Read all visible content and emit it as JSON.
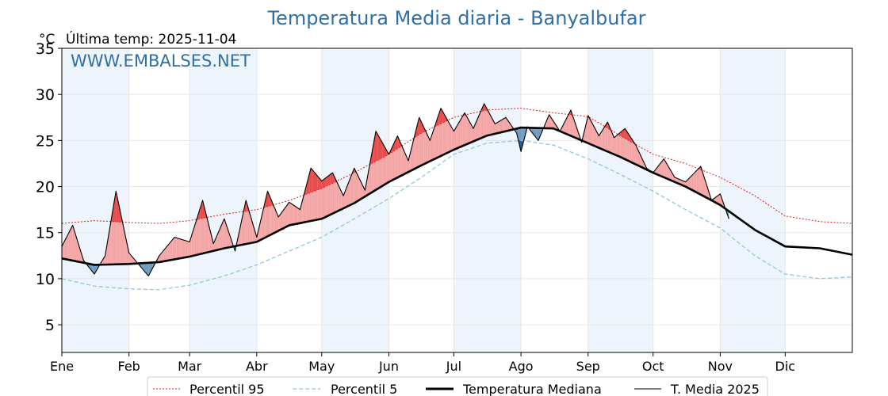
{
  "chart_data": {
    "type": "line",
    "title": "Temperatura Media diaria - Banyalbufar",
    "unit": "°C",
    "last_temp_label": "Última temp: 2025-11-04",
    "watermark": "WWW.EMBALSES.NET",
    "ylim": [
      2,
      35
    ],
    "yticks": [
      5,
      10,
      15,
      20,
      25,
      30,
      35
    ],
    "xlim": [
      0,
      365
    ],
    "month_labels": [
      "Ene",
      "Feb",
      "Mar",
      "Abr",
      "May",
      "Jun",
      "Jul",
      "Ago",
      "Sep",
      "Oct",
      "Nov",
      "Dic"
    ],
    "month_starts": [
      0,
      31,
      59,
      90,
      120,
      151,
      181,
      212,
      243,
      273,
      304,
      334
    ],
    "grid": true,
    "legend_position": "bottom",
    "colors": {
      "title": "#2e6fa6",
      "p95": "#e31a1c",
      "p5": "#8ec7da",
      "median": "#000000",
      "current": "#000000",
      "above_fill": "#f4a6a6",
      "above_strong": "#e84c4c",
      "below_fill": "#6f9bc2",
      "below_strong": "#245b8c",
      "month_band": "#eef4fb"
    },
    "series": [
      {
        "name": "Percentil 95",
        "style": "dotted",
        "x": [
          0,
          15,
          31,
          45,
          59,
          75,
          90,
          105,
          120,
          135,
          151,
          166,
          181,
          196,
          212,
          227,
          243,
          258,
          273,
          288,
          304,
          320,
          334,
          350,
          365
        ],
        "y": [
          16.0,
          16.3,
          16.1,
          16.0,
          16.3,
          17.0,
          17.5,
          18.5,
          19.8,
          21.5,
          23.5,
          25.8,
          27.5,
          28.3,
          28.5,
          28.0,
          27.6,
          25.5,
          23.5,
          22.5,
          21.0,
          19.0,
          16.8,
          16.2,
          16.0
        ]
      },
      {
        "name": "Percentil 5",
        "style": "dashed",
        "x": [
          0,
          15,
          31,
          45,
          59,
          75,
          90,
          105,
          120,
          135,
          151,
          166,
          181,
          196,
          212,
          227,
          243,
          258,
          273,
          288,
          304,
          320,
          334,
          350,
          365
        ],
        "y": [
          10.0,
          9.2,
          8.9,
          8.8,
          9.3,
          10.3,
          11.5,
          13.0,
          14.5,
          16.5,
          18.7,
          21.0,
          23.5,
          24.7,
          25.0,
          24.5,
          23.0,
          21.3,
          19.5,
          17.5,
          15.5,
          12.5,
          10.5,
          10.0,
          10.2
        ]
      },
      {
        "name": "Temperatura Mediana",
        "style": "solid-thick",
        "x": [
          0,
          15,
          31,
          45,
          59,
          75,
          90,
          105,
          120,
          135,
          151,
          166,
          181,
          196,
          212,
          227,
          243,
          258,
          273,
          288,
          304,
          320,
          334,
          350,
          365
        ],
        "y": [
          12.2,
          11.5,
          11.6,
          11.8,
          12.4,
          13.3,
          14.0,
          15.8,
          16.5,
          18.2,
          20.5,
          22.3,
          24.0,
          25.5,
          26.4,
          26.3,
          24.7,
          23.2,
          21.5,
          20.0,
          18.0,
          15.3,
          13.5,
          13.3,
          12.6
        ]
      },
      {
        "name": "T. Media 2025",
        "style": "solid-thin",
        "x": [
          0,
          5,
          10,
          15,
          20,
          25,
          31,
          40,
          45,
          52,
          59,
          65,
          70,
          75,
          80,
          85,
          90,
          95,
          100,
          105,
          110,
          115,
          120,
          125,
          130,
          135,
          140,
          145,
          151,
          155,
          160,
          165,
          170,
          175,
          181,
          186,
          190,
          195,
          200,
          205,
          210,
          212,
          215,
          220,
          225,
          230,
          235,
          240,
          243,
          248,
          252,
          255,
          260,
          265,
          270,
          273,
          278,
          283,
          288,
          295,
          300,
          304,
          308
        ],
        "y": [
          13.5,
          15.8,
          12.0,
          10.5,
          12.5,
          19.5,
          12.8,
          10.3,
          12.5,
          14.5,
          14.0,
          18.5,
          13.8,
          16.5,
          13.0,
          18.5,
          14.5,
          19.5,
          16.7,
          18.3,
          17.5,
          22.0,
          20.6,
          21.5,
          19.0,
          22.0,
          19.6,
          26.0,
          23.5,
          25.5,
          22.8,
          27.5,
          25.0,
          28.5,
          26.0,
          28.0,
          26.3,
          29.0,
          26.8,
          27.5,
          25.8,
          23.8,
          26.5,
          25.0,
          27.8,
          26.0,
          28.3,
          24.8,
          27.7,
          25.5,
          27.0,
          25.3,
          26.3,
          24.5,
          22.0,
          21.5,
          23.0,
          21.0,
          20.5,
          22.2,
          18.5,
          19.2,
          16.5
        ]
      }
    ]
  },
  "legend": {
    "items": [
      "Percentil 95",
      "Percentil 5",
      "Temperatura Mediana",
      "T. Media 2025"
    ]
  }
}
